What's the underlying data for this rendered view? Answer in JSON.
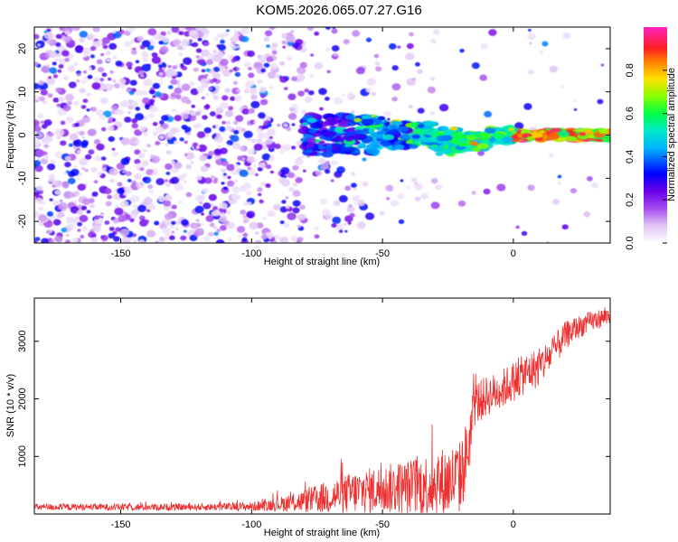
{
  "title": "KOM5.2026.065.07.27.G16",
  "chart_data": [
    {
      "type": "heatmap",
      "name": "spectrogram",
      "xlabel": "Height of straight line (km)",
      "ylabel": "Frequency (Hz)",
      "xlim": [
        -183,
        37
      ],
      "ylim": [
        -25,
        25
      ],
      "xticks": [
        -150,
        -100,
        -50,
        0
      ],
      "yticks": [
        -20,
        -10,
        0,
        10,
        20
      ],
      "colorbar": {
        "label": "Normalized spectral amplitude",
        "range": [
          0,
          1
        ],
        "ticks": [
          0.0,
          0.2,
          0.4,
          0.6,
          0.8
        ],
        "tick_labels": [
          "0.0",
          "0.2",
          "0.4",
          "0.6",
          "0.8"
        ],
        "colors": [
          "#ffffff",
          "#e0c6f5",
          "#8a2be2",
          "#4b00e0",
          "#0000ff",
          "#00d8ff",
          "#00ff66",
          "#9cff00",
          "#ffd800",
          "#ff3030",
          "#ff00c8"
        ]
      },
      "signal": {
        "description_free": true,
        "frequency_center_hz": 0,
        "strong_from_km": -60,
        "peak_region_km": [
          0,
          37
        ]
      }
    },
    {
      "type": "line",
      "name": "snr",
      "xlabel": "Height of straight line (km)",
      "ylabel": "SNR (10 * v/v)",
      "xlim": [
        -183,
        37
      ],
      "ylim": [
        0,
        3750
      ],
      "xticks": [
        -150,
        -100,
        -50,
        0
      ],
      "yticks": [
        1000,
        2000,
        3000
      ],
      "color": "#ee3030",
      "envelope": {
        "x": [
          -183,
          -150,
          -120,
          -100,
          -90,
          -80,
          -70,
          -60,
          -50,
          -40,
          -30,
          -25,
          -20,
          -17,
          -15,
          -10,
          -5,
          0,
          5,
          10,
          15,
          20,
          25,
          30,
          37
        ],
        "mid": [
          120,
          120,
          120,
          130,
          170,
          220,
          300,
          380,
          430,
          470,
          520,
          560,
          640,
          1200,
          1900,
          2050,
          2150,
          2300,
          2450,
          2550,
          2800,
          3100,
          3250,
          3350,
          3450
        ],
        "amp": [
          60,
          60,
          60,
          80,
          120,
          200,
          300,
          380,
          420,
          480,
          600,
          650,
          650,
          600,
          400,
          350,
          350,
          350,
          350,
          350,
          300,
          250,
          200,
          180,
          150
        ]
      }
    }
  ]
}
